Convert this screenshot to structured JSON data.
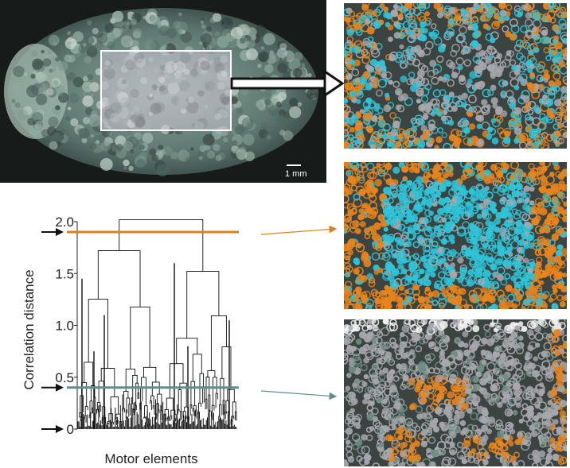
{
  "figure": {
    "scale_bar_label": "1 mm",
    "zoom_views": [
      {
        "name": "zoom-top"
      },
      {
        "name": "zoom-mid"
      },
      {
        "name": "zoom-bot"
      }
    ]
  },
  "chart_data": {
    "type": "dendrogram",
    "title": "",
    "xlabel": "Motor elements",
    "ylabel": "Correlation distance",
    "ylim": [
      0,
      2.0
    ],
    "y_ticks": [
      "0",
      "0.5",
      "1.0",
      "1.5",
      "2.0"
    ],
    "y_tick_values": [
      0,
      0.5,
      1.0,
      1.5,
      2.0
    ],
    "cut_lines": [
      {
        "y": 1.9,
        "color": "#d9821f"
      },
      {
        "y": 0.4,
        "color": "#5f8f86"
      }
    ],
    "arrow_marks_y": [
      1.9,
      0.4,
      0.0
    ],
    "grid": false
  },
  "colors": {
    "orange": "#e8841d",
    "cyan": "#2ec4d8",
    "white": "#f1f1f1",
    "gray": "#a7a7ad"
  }
}
